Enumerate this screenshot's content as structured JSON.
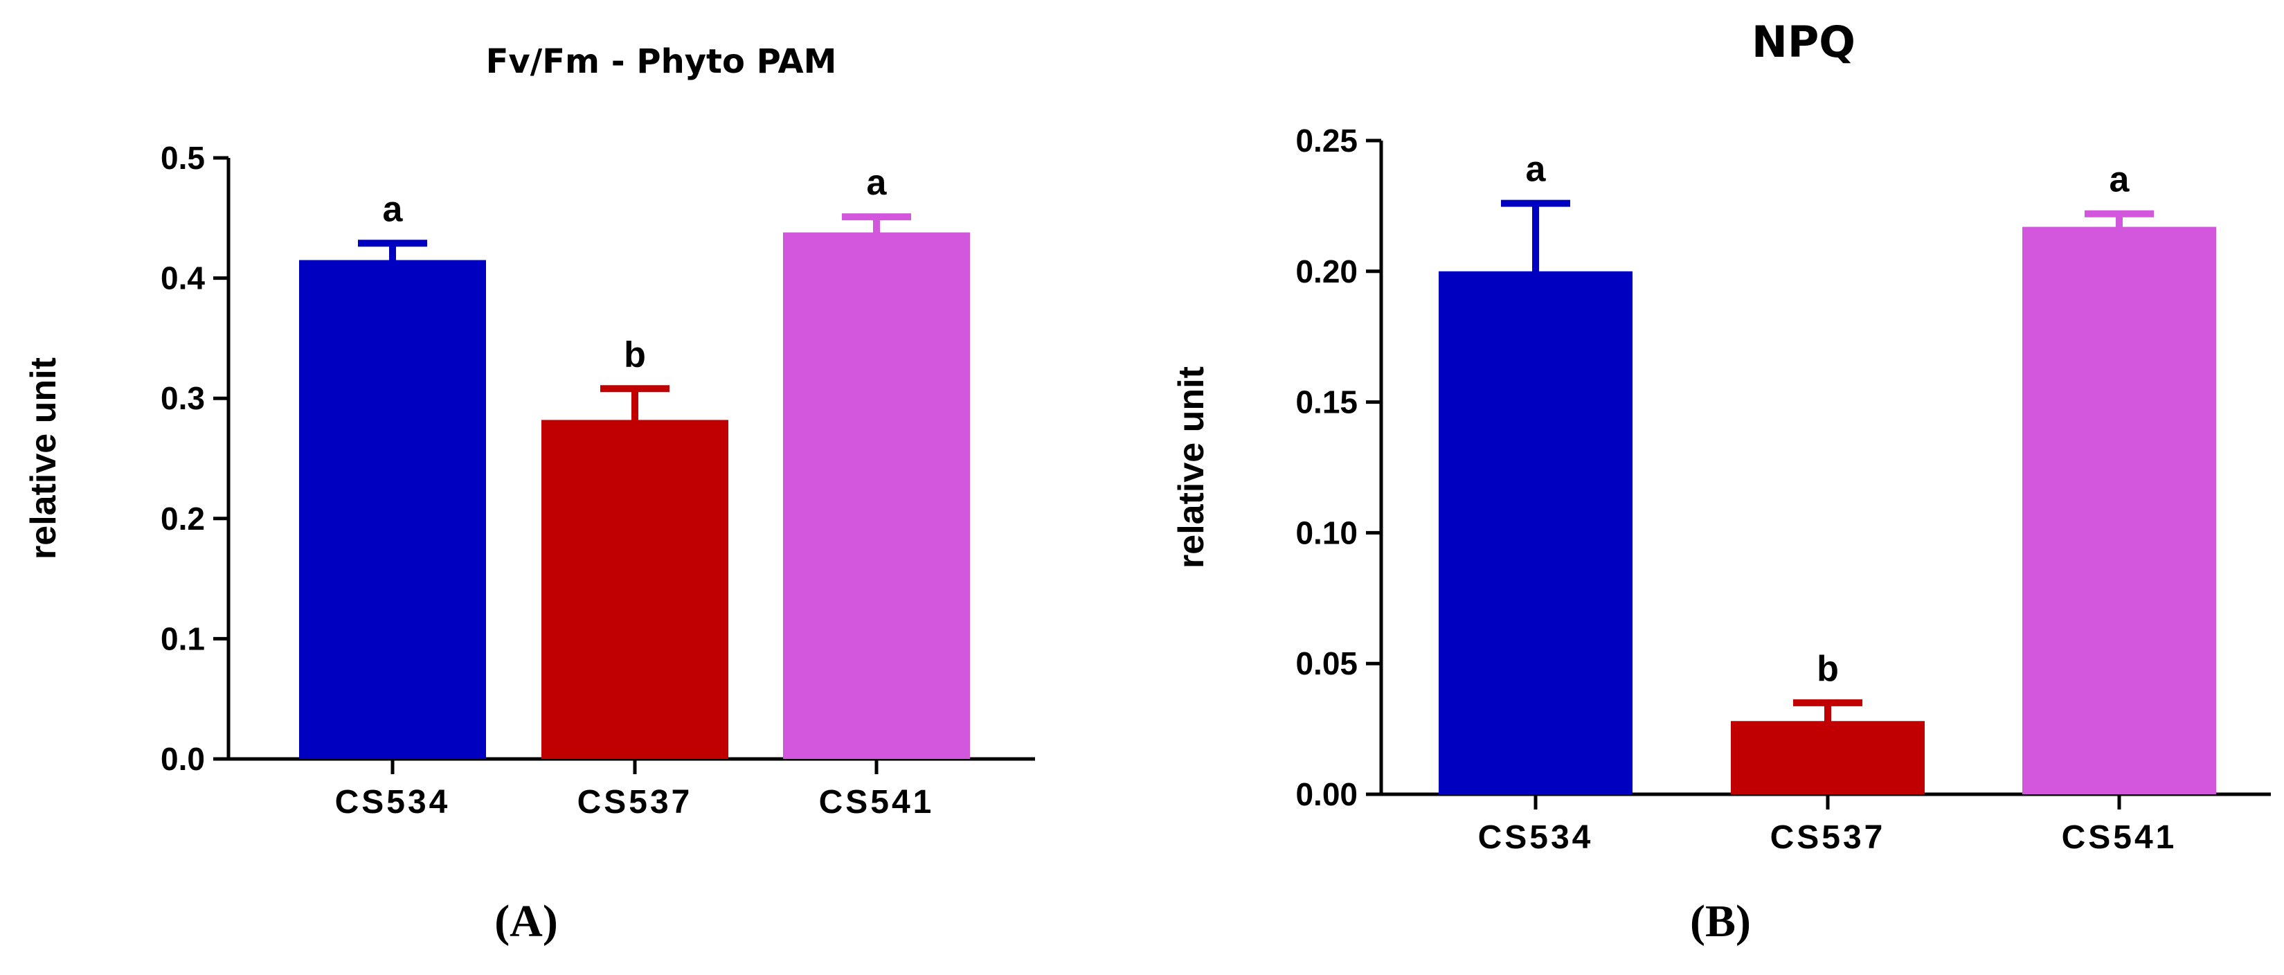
{
  "chart_data": [
    {
      "panel": "(A)",
      "type": "bar",
      "title": "Fv/Fm - Phyto PAM",
      "xlabel": "",
      "ylabel": "relative unit",
      "ylim": [
        0,
        0.5
      ],
      "yticks": [
        "0.0",
        "0.1",
        "0.2",
        "0.3",
        "0.4",
        "0.5"
      ],
      "categories": [
        "CS534",
        "CS537",
        "CS541"
      ],
      "values": [
        0.415,
        0.282,
        0.438
      ],
      "errors": [
        0.014,
        0.026,
        0.013
      ],
      "significance": [
        "a",
        "b",
        "a"
      ],
      "colors": [
        "#0000C0",
        "#C00000",
        "#D357DC"
      ],
      "grid": false
    },
    {
      "panel": "(B)",
      "type": "bar",
      "title": "NPQ",
      "xlabel": "",
      "ylabel": "relative unit",
      "ylim": [
        0,
        0.25
      ],
      "yticks": [
        "0.00",
        "0.05",
        "0.10",
        "0.15",
        "0.20",
        "0.25"
      ],
      "categories": [
        "CS534",
        "CS537",
        "CS541"
      ],
      "values": [
        0.2,
        0.028,
        0.217
      ],
      "errors": [
        0.026,
        0.007,
        0.005
      ],
      "significance": [
        "a",
        "b",
        "a"
      ],
      "colors": [
        "#0000C0",
        "#C00000",
        "#D357DC"
      ],
      "grid": false
    }
  ]
}
